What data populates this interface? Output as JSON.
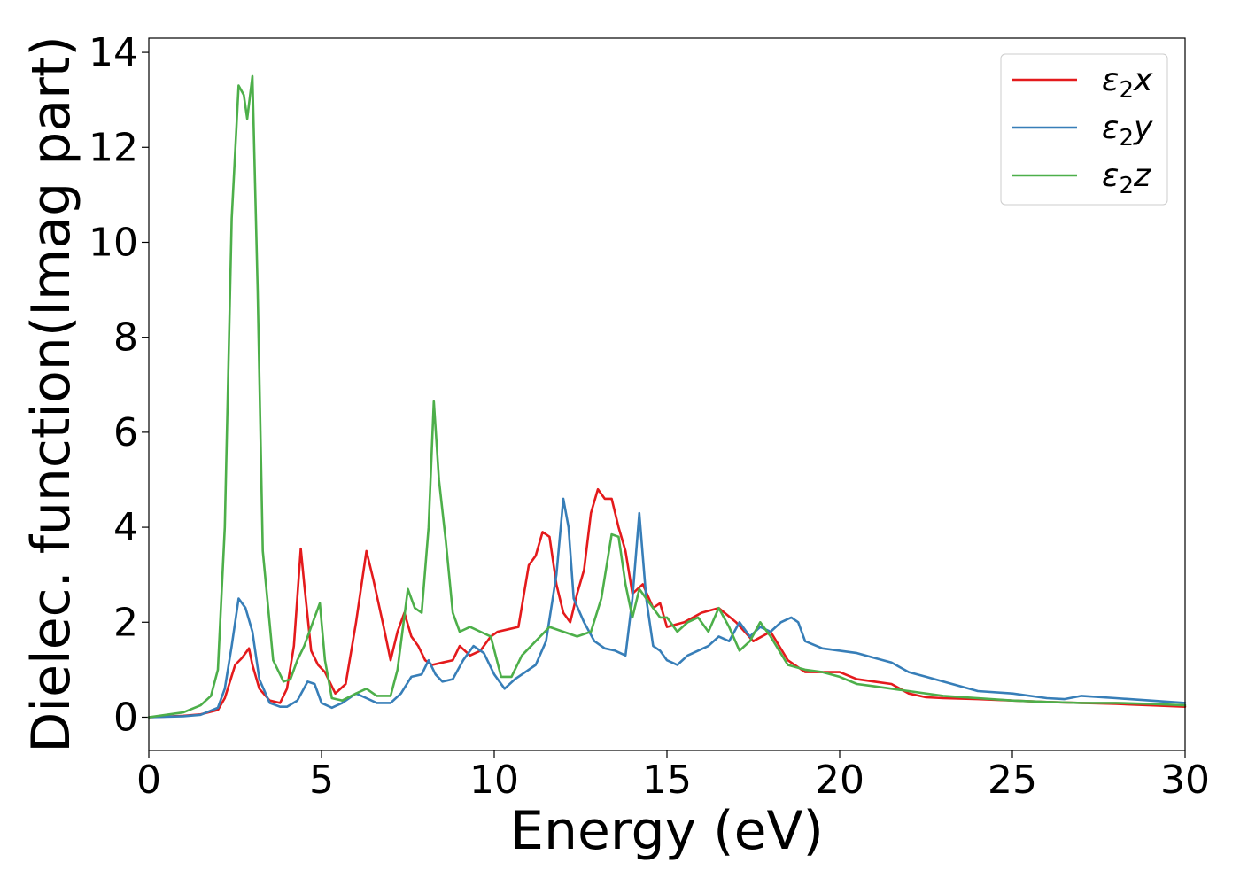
{
  "chart_data": {
    "type": "line",
    "title": "",
    "xlabel": "Energy (eV)",
    "ylabel": "Dielec. function(Imag part)",
    "xlim": [
      0,
      30
    ],
    "ylim": [
      -0.7,
      14.3
    ],
    "xticks": [
      0,
      5,
      10,
      15,
      20,
      25,
      30
    ],
    "yticks": [
      0,
      2,
      4,
      6,
      8,
      10,
      12,
      14
    ],
    "grid": false,
    "legend_position": "top-right",
    "series": [
      {
        "name": "ε₂x",
        "legend_base": "ε",
        "legend_sub": "2",
        "legend_suffix": "x",
        "color": "#e41a1c",
        "x": [
          0,
          1,
          1.5,
          2,
          2.2,
          2.5,
          2.7,
          2.9,
          3.0,
          3.2,
          3.5,
          3.8,
          4.0,
          4.2,
          4.4,
          4.5,
          4.7,
          4.9,
          5.1,
          5.4,
          5.7,
          6.0,
          6.3,
          6.5,
          6.8,
          7.0,
          7.2,
          7.4,
          7.6,
          7.8,
          8.0,
          8.2,
          8.5,
          8.8,
          9.0,
          9.3,
          9.6,
          9.9,
          10.1,
          10.4,
          10.7,
          11.0,
          11.2,
          11.4,
          11.6,
          11.8,
          12.0,
          12.2,
          12.4,
          12.6,
          12.8,
          13.0,
          13.2,
          13.4,
          13.6,
          13.8,
          14.0,
          14.3,
          14.6,
          14.8,
          15.0,
          15.5,
          16.0,
          16.5,
          17.0,
          17.5,
          18.0,
          18.5,
          19.0,
          19.5,
          20.0,
          20.5,
          21.0,
          21.5,
          22.0,
          22.5,
          23.0,
          24.0,
          25.0,
          26.0,
          27.0,
          28.0,
          29.0,
          30.0
        ],
        "y": [
          0.0,
          0.03,
          0.06,
          0.15,
          0.4,
          1.1,
          1.25,
          1.45,
          1.1,
          0.6,
          0.35,
          0.3,
          0.6,
          1.5,
          3.55,
          2.8,
          1.4,
          1.1,
          0.95,
          0.5,
          0.7,
          2.0,
          3.5,
          2.9,
          1.9,
          1.2,
          1.8,
          2.2,
          1.7,
          1.5,
          1.2,
          1.1,
          1.15,
          1.2,
          1.5,
          1.3,
          1.4,
          1.7,
          1.8,
          1.85,
          1.9,
          3.2,
          3.4,
          3.9,
          3.8,
          2.8,
          2.2,
          2.0,
          2.6,
          3.1,
          4.3,
          4.8,
          4.6,
          4.6,
          4.0,
          3.5,
          2.6,
          2.8,
          2.3,
          2.4,
          1.9,
          2.0,
          2.2,
          2.3,
          2.0,
          1.6,
          1.8,
          1.2,
          0.95,
          0.95,
          0.95,
          0.8,
          0.75,
          0.7,
          0.5,
          0.42,
          0.4,
          0.38,
          0.35,
          0.32,
          0.3,
          0.28,
          0.25,
          0.22
        ]
      },
      {
        "name": "ε₂y",
        "legend_base": "ε",
        "legend_sub": "2",
        "legend_suffix": "y",
        "color": "#377eb8",
        "x": [
          0,
          1,
          1.5,
          2,
          2.2,
          2.4,
          2.6,
          2.8,
          3.0,
          3.2,
          3.5,
          3.8,
          4.0,
          4.3,
          4.6,
          4.8,
          5.0,
          5.3,
          5.6,
          6.0,
          6.3,
          6.6,
          7.0,
          7.3,
          7.6,
          7.9,
          8.1,
          8.3,
          8.5,
          8.8,
          9.1,
          9.4,
          9.7,
          10.0,
          10.3,
          10.6,
          10.9,
          11.2,
          11.5,
          11.8,
          12.0,
          12.15,
          12.3,
          12.6,
          12.9,
          13.2,
          13.5,
          13.8,
          14.0,
          14.2,
          14.4,
          14.6,
          14.8,
          15.0,
          15.3,
          15.6,
          15.9,
          16.2,
          16.5,
          16.8,
          17.1,
          17.4,
          17.7,
          18.0,
          18.3,
          18.6,
          18.8,
          19.0,
          19.5,
          20.0,
          20.5,
          21.0,
          21.5,
          22.0,
          22.5,
          23.0,
          23.5,
          24.0,
          25.0,
          26.0,
          26.5,
          27.0,
          28.0,
          29.0,
          30.0
        ],
        "y": [
          0.0,
          0.02,
          0.05,
          0.2,
          0.6,
          1.5,
          2.5,
          2.3,
          1.8,
          0.8,
          0.3,
          0.22,
          0.22,
          0.35,
          0.75,
          0.7,
          0.3,
          0.2,
          0.3,
          0.5,
          0.4,
          0.3,
          0.3,
          0.5,
          0.85,
          0.9,
          1.2,
          0.9,
          0.75,
          0.8,
          1.2,
          1.5,
          1.35,
          0.9,
          0.6,
          0.8,
          0.95,
          1.1,
          1.6,
          3.0,
          4.6,
          4.0,
          2.5,
          2.0,
          1.6,
          1.45,
          1.4,
          1.3,
          2.5,
          4.3,
          2.5,
          1.5,
          1.4,
          1.2,
          1.1,
          1.3,
          1.4,
          1.5,
          1.7,
          1.6,
          2.0,
          1.7,
          1.9,
          1.8,
          2.0,
          2.1,
          2.0,
          1.6,
          1.45,
          1.4,
          1.35,
          1.25,
          1.15,
          0.95,
          0.85,
          0.75,
          0.65,
          0.55,
          0.5,
          0.4,
          0.38,
          0.45,
          0.4,
          0.35,
          0.3
        ]
      },
      {
        "name": "ε₂z",
        "legend_base": "ε",
        "legend_sub": "2",
        "legend_suffix": "z",
        "color": "#4daf4a",
        "x": [
          0,
          1,
          1.5,
          1.8,
          2.0,
          2.2,
          2.4,
          2.6,
          2.75,
          2.85,
          3.0,
          3.15,
          3.3,
          3.6,
          3.9,
          4.1,
          4.3,
          4.5,
          4.7,
          4.95,
          5.1,
          5.3,
          5.6,
          6.0,
          6.3,
          6.6,
          7.0,
          7.2,
          7.5,
          7.7,
          7.9,
          8.1,
          8.25,
          8.4,
          8.6,
          8.8,
          9.0,
          9.3,
          9.6,
          9.9,
          10.2,
          10.5,
          10.8,
          11.2,
          11.6,
          12.0,
          12.4,
          12.8,
          13.1,
          13.4,
          13.6,
          13.8,
          14.0,
          14.2,
          14.5,
          14.8,
          15.0,
          15.3,
          15.6,
          15.9,
          16.2,
          16.5,
          16.8,
          17.1,
          17.4,
          17.7,
          18.0,
          18.5,
          19.0,
          19.5,
          20.0,
          20.5,
          21.0,
          21.5,
          22.0,
          23.0,
          24.0,
          25.0,
          26.0,
          27.0,
          28.0,
          29.0,
          30.0
        ],
        "y": [
          0.0,
          0.1,
          0.25,
          0.45,
          1.0,
          4.0,
          10.5,
          13.3,
          13.1,
          12.6,
          13.5,
          9.0,
          3.5,
          1.2,
          0.75,
          0.8,
          1.2,
          1.5,
          1.9,
          2.4,
          1.2,
          0.4,
          0.35,
          0.5,
          0.6,
          0.45,
          0.45,
          1.0,
          2.7,
          2.3,
          2.2,
          4.0,
          6.65,
          5.0,
          3.7,
          2.2,
          1.8,
          1.9,
          1.8,
          1.7,
          0.85,
          0.85,
          1.3,
          1.6,
          1.9,
          1.8,
          1.7,
          1.8,
          2.5,
          3.85,
          3.8,
          2.8,
          2.1,
          2.7,
          2.4,
          2.1,
          2.1,
          1.8,
          2.0,
          2.1,
          1.8,
          2.3,
          1.9,
          1.4,
          1.6,
          2.0,
          1.7,
          1.1,
          1.0,
          0.95,
          0.85,
          0.7,
          0.65,
          0.6,
          0.55,
          0.45,
          0.4,
          0.35,
          0.32,
          0.3,
          0.3,
          0.28,
          0.25
        ]
      }
    ]
  }
}
